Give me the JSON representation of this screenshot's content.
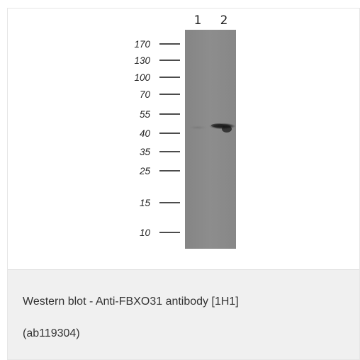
{
  "blot": {
    "lanes": [
      "1",
      "2"
    ],
    "markers": [
      "170",
      "130",
      "100",
      "70",
      "55",
      "40",
      "35",
      "25",
      "15",
      "10"
    ],
    "membrane_color": "#8a8a8a",
    "band_color": "#1c1c1c"
  },
  "caption": {
    "line1": "Western blot - Anti-FBXO31 antibody [1H1]",
    "line2": "(ab119304)"
  }
}
